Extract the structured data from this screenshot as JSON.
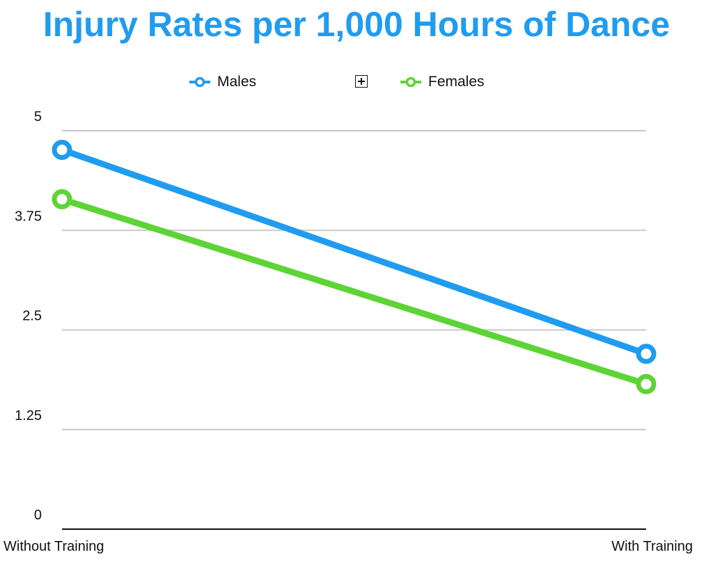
{
  "chart_data": {
    "type": "line",
    "title": "Injury Rates per 1,000 Hours of Dance",
    "categories": [
      "Without Training",
      "With Training"
    ],
    "series": [
      {
        "name": "Males",
        "values": [
          4.76,
          2.2
        ],
        "color": "#1f9cf0"
      },
      {
        "name": "Females",
        "values": [
          4.14,
          1.82
        ],
        "color": "#5dd435"
      }
    ],
    "ylim": [
      0,
      5
    ],
    "yticks": [
      "0",
      "1.25",
      "2.5",
      "3.75",
      "5"
    ],
    "grid": true,
    "legend": "top-center",
    "title_color": "#1f9cf0"
  },
  "legend": {
    "expand_icon": "expand-square-icon"
  }
}
